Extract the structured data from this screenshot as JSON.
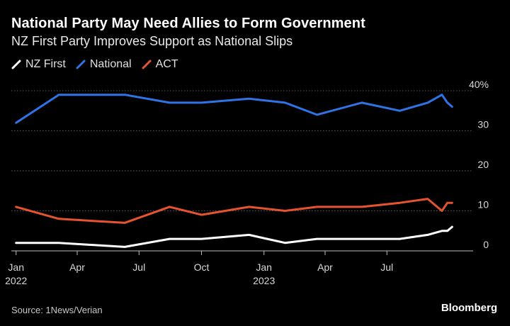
{
  "header": {
    "title": "National Party May Need Allies to Form Government",
    "subtitle": "NZ First Party Improves Support as National Slips"
  },
  "footer": {
    "source": "Source: 1News/Verian",
    "brand": "Bloomberg"
  },
  "chart_data": {
    "type": "line",
    "title": "National Party May Need Allies to Form Government",
    "subtitle": "NZ First Party Improves Support as National Slips",
    "ylim": [
      0,
      40
    ],
    "y_ticks": [
      {
        "value": 0,
        "label": "0"
      },
      {
        "value": 10,
        "label": "10"
      },
      {
        "value": 20,
        "label": "20"
      },
      {
        "value": 30,
        "label": "30"
      },
      {
        "value": 40,
        "label": "40%"
      }
    ],
    "x_ticks": [
      {
        "date": "2022-01-01",
        "label": "Jan",
        "sublabel": "2022"
      },
      {
        "date": "2022-04-01",
        "label": "Apr",
        "sublabel": ""
      },
      {
        "date": "2022-07-01",
        "label": "Jul",
        "sublabel": ""
      },
      {
        "date": "2022-10-01",
        "label": "Oct",
        "sublabel": ""
      },
      {
        "date": "2023-01-01",
        "label": "Jan",
        "sublabel": "2023"
      },
      {
        "date": "2023-04-01",
        "label": "Apr",
        "sublabel": ""
      },
      {
        "date": "2023-07-01",
        "label": "Jul",
        "sublabel": ""
      }
    ],
    "xlim": [
      "2021-12-25",
      "2023-11-05"
    ],
    "grid": true,
    "legend_position": "top-left",
    "series": [
      {
        "name": "NZ First",
        "color": "#ffffff",
        "points": [
          {
            "date": "2022-01-01",
            "value": 2
          },
          {
            "date": "2022-03-05",
            "value": 2
          },
          {
            "date": "2022-06-10",
            "value": 1
          },
          {
            "date": "2022-08-15",
            "value": 3
          },
          {
            "date": "2022-10-01",
            "value": 3
          },
          {
            "date": "2022-12-10",
            "value": 4
          },
          {
            "date": "2023-02-01",
            "value": 2
          },
          {
            "date": "2023-03-20",
            "value": 3
          },
          {
            "date": "2023-05-25",
            "value": 3
          },
          {
            "date": "2023-07-20",
            "value": 3
          },
          {
            "date": "2023-08-30",
            "value": 4
          },
          {
            "date": "2023-09-20",
            "value": 5
          },
          {
            "date": "2023-09-28",
            "value": 5
          },
          {
            "date": "2023-10-05",
            "value": 6
          }
        ]
      },
      {
        "name": "National",
        "color": "#2f73e6",
        "points": [
          {
            "date": "2022-01-01",
            "value": 32
          },
          {
            "date": "2022-03-05",
            "value": 39
          },
          {
            "date": "2022-06-10",
            "value": 39
          },
          {
            "date": "2022-08-15",
            "value": 37
          },
          {
            "date": "2022-10-01",
            "value": 37
          },
          {
            "date": "2022-12-10",
            "value": 38
          },
          {
            "date": "2023-02-01",
            "value": 37
          },
          {
            "date": "2023-03-20",
            "value": 34
          },
          {
            "date": "2023-05-25",
            "value": 37
          },
          {
            "date": "2023-07-20",
            "value": 35
          },
          {
            "date": "2023-08-30",
            "value": 37
          },
          {
            "date": "2023-09-20",
            "value": 39
          },
          {
            "date": "2023-09-28",
            "value": 37
          },
          {
            "date": "2023-10-05",
            "value": 36
          }
        ]
      },
      {
        "name": "ACT",
        "color": "#e5532f",
        "points": [
          {
            "date": "2022-01-01",
            "value": 11
          },
          {
            "date": "2022-03-05",
            "value": 8
          },
          {
            "date": "2022-06-10",
            "value": 7
          },
          {
            "date": "2022-08-15",
            "value": 11
          },
          {
            "date": "2022-10-01",
            "value": 9
          },
          {
            "date": "2022-12-10",
            "value": 11
          },
          {
            "date": "2023-02-01",
            "value": 10
          },
          {
            "date": "2023-03-20",
            "value": 11
          },
          {
            "date": "2023-05-25",
            "value": 11
          },
          {
            "date": "2023-07-20",
            "value": 12
          },
          {
            "date": "2023-08-30",
            "value": 13
          },
          {
            "date": "2023-09-20",
            "value": 10
          },
          {
            "date": "2023-09-28",
            "value": 12
          },
          {
            "date": "2023-10-05",
            "value": 12
          }
        ]
      }
    ]
  }
}
